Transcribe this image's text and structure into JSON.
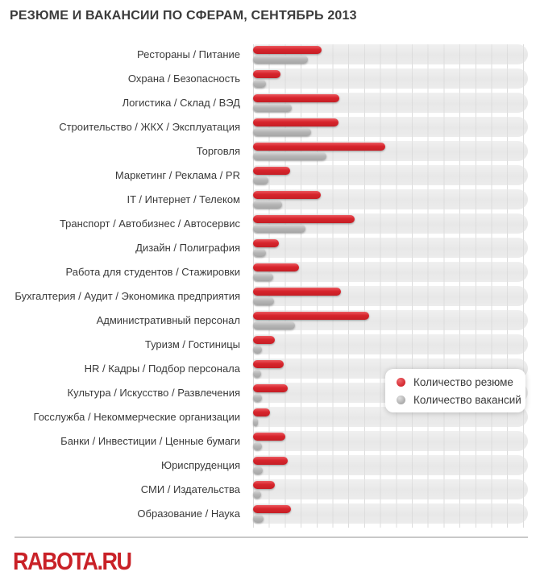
{
  "logo_text": "RABOTA.RU",
  "colors": {
    "resume_bar": "#d7242c",
    "vacancy_bar": "#b4b4b4",
    "track": "#ececec",
    "grid_line": "#dcdcdc",
    "title_text": "#3b3b3b",
    "label_text": "#3a3a3a",
    "logo_red": "#c92127",
    "legend_bg": "#ffffff"
  },
  "chart_data": {
    "type": "bar",
    "orientation": "horizontal",
    "title": "РЕЗЮМЕ И ВАКАНСИИ ПО СФЕРАМ, СЕНТЯБРЬ 2013",
    "xlabel": "",
    "ylabel": "",
    "value_axis_note": "no numeric axis shown; values are bar lengths as % of plot width",
    "xlim": [
      0,
      100
    ],
    "grid": true,
    "legend_position": "inside lower right",
    "categories": [
      "Рестораны / Питание",
      "Охрана / Безопасность",
      "Логистика / Склад / ВЭД",
      "Строительство / ЖКХ / Эксплуатация",
      "Торговля",
      "Маркетинг / Реклама / PR",
      "IT / Интернет / Телеком",
      "Транспорт / Автобизнес / Автосервис",
      "Дизайн / Полиграфия",
      "Работа для студентов / Стажировки",
      "Бухгалтерия / Аудит / Экономика предприятия",
      "Административный персонал",
      "Туризм / Гостиницы",
      "HR / Кадры / Подбор персонала",
      "Культура / Искусство / Развлечения",
      "Госслужба / Некоммерческие организации",
      "Банки / Инвестиции / Ценные бумаги",
      "Юриспруденция",
      "СМИ / Издательства",
      "Образование / Наука"
    ],
    "series": [
      {
        "name": "Количество резюме",
        "color": "#d7242c",
        "values_pct": [
          24.9,
          10.0,
          31.4,
          31.1,
          48.1,
          13.5,
          24.6,
          37.0,
          9.4,
          16.7,
          32.0,
          42.2,
          7.9,
          11.1,
          12.6,
          6.2,
          11.7,
          12.6,
          7.9,
          13.8
        ]
      },
      {
        "name": "Количество вакансий",
        "color": "#b4b4b4",
        "values_pct": [
          19.9,
          4.7,
          14.1,
          21.1,
          26.7,
          5.6,
          10.6,
          19.1,
          4.7,
          7.3,
          7.6,
          15.2,
          3.2,
          2.9,
          3.2,
          1.8,
          3.2,
          3.5,
          2.9,
          3.8
        ]
      }
    ]
  }
}
